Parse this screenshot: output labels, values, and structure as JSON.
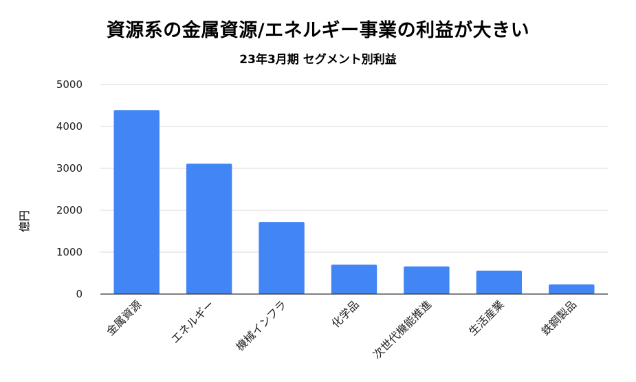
{
  "chart_data": {
    "type": "bar",
    "title": "資源系の金属資源/エネルギー事業の利益が大きい",
    "subtitle": "23年3月期 セグメント別利益",
    "xlabel": "",
    "ylabel": "億円",
    "ylim": [
      0,
      5000
    ],
    "yticks": [
      0,
      1000,
      2000,
      3000,
      4000,
      5000
    ],
    "grid": true,
    "categories": [
      "金属資源",
      "エネルギー",
      "機械インフラ",
      "化学品",
      "次世代機能推進",
      "生活産業",
      "鉄鋼製品"
    ],
    "values": [
      4390,
      3110,
      1720,
      700,
      660,
      560,
      230
    ],
    "bar_color": "#4285f4"
  }
}
